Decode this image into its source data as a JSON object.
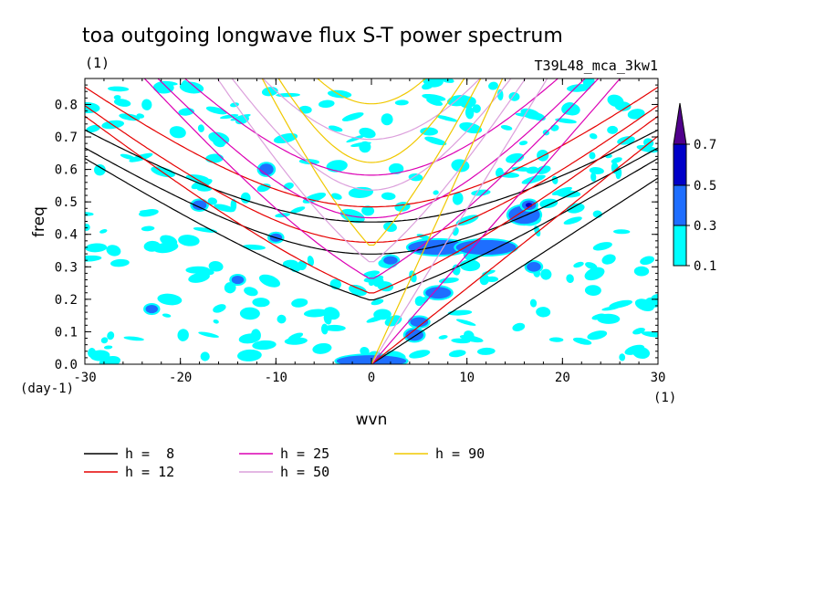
{
  "chart_data": {
    "type": "heatmap",
    "title": "toa outgoing longwave flux S-T power spectrum",
    "subtitle_left": "(1)",
    "subtitle_right": "T39L48_mca_3kw1",
    "xlabel": "wvn",
    "ylabel": "freq",
    "xunit": "(1)",
    "yunit": "(day-1)",
    "xlim": [
      -30,
      30
    ],
    "ylim": [
      0,
      0.88
    ],
    "xticks": [
      -30,
      -20,
      -10,
      0,
      10,
      20,
      30
    ],
    "yticks": [
      0.0,
      0.1,
      0.2,
      0.3,
      0.4,
      0.5,
      0.6,
      0.7,
      0.8
    ],
    "ytick_labels": [
      "0.0",
      "0.1",
      "0.2",
      "0.3",
      "0.4",
      "0.5",
      "0.6",
      "0.7",
      "0.8"
    ],
    "colorbar": {
      "levels": [
        "0.1",
        "0.3",
        "0.5",
        "0.7"
      ],
      "colors": [
        "#00ffff",
        "#1e6eff",
        "#0000c8",
        "#50008c"
      ]
    },
    "field_blobs": [
      {
        "x": 1.5,
        "y": 0.005,
        "level": 3,
        "rx": 1.5,
        "ry": 0.008
      },
      {
        "x": 0,
        "y": 0.01,
        "level": 2,
        "rx": 3.5,
        "ry": 0.015
      },
      {
        "x": 4.5,
        "y": 0.09,
        "level": 2,
        "rx": 0.8,
        "ry": 0.015
      },
      {
        "x": 5,
        "y": 0.13,
        "level": 2,
        "rx": 0.8,
        "ry": 0.012
      },
      {
        "x": 7,
        "y": 0.22,
        "level": 2,
        "rx": 1.2,
        "ry": 0.015
      },
      {
        "x": 7,
        "y": 0.36,
        "level": 2,
        "rx": 3.0,
        "ry": 0.02
      },
      {
        "x": 12,
        "y": 0.36,
        "level": 2,
        "rx": 3.0,
        "ry": 0.02
      },
      {
        "x": 16,
        "y": 0.46,
        "level": 2,
        "rx": 1.5,
        "ry": 0.025
      },
      {
        "x": 16.5,
        "y": 0.49,
        "level": 3,
        "rx": 0.6,
        "ry": 0.012
      },
      {
        "x": -11,
        "y": 0.6,
        "level": 2,
        "rx": 0.6,
        "ry": 0.015
      },
      {
        "x": -18,
        "y": 0.49,
        "level": 2,
        "rx": 0.6,
        "ry": 0.012
      },
      {
        "x": -14,
        "y": 0.26,
        "level": 2,
        "rx": 0.5,
        "ry": 0.01
      },
      {
        "x": -10,
        "y": 0.39,
        "level": 2,
        "rx": 0.5,
        "ry": 0.01
      },
      {
        "x": 2,
        "y": 0.32,
        "level": 2,
        "rx": 0.6,
        "ry": 0.01
      },
      {
        "x": 17,
        "y": 0.3,
        "level": 2,
        "rx": 0.6,
        "ry": 0.012
      },
      {
        "x": -23,
        "y": 0.17,
        "level": 2,
        "rx": 0.5,
        "ry": 0.01
      }
    ],
    "dispersion_curves": [
      {
        "name": "h =  8",
        "h": 8,
        "color": "#000000"
      },
      {
        "name": "h = 12",
        "h": 12,
        "color": "#e60000"
      },
      {
        "name": "h = 25",
        "h": 25,
        "color": "#dc00b4"
      },
      {
        "name": "h = 50",
        "h": 50,
        "color": "#dca0dc"
      },
      {
        "name": "h = 90",
        "h": 90,
        "color": "#f0c800"
      }
    ]
  },
  "legend": {
    "items": [
      {
        "label": "h =  8",
        "color": "#000000"
      },
      {
        "label": "h = 12",
        "color": "#e60000"
      },
      {
        "label": "h = 25",
        "color": "#dc00b4"
      },
      {
        "label": "h = 50",
        "color": "#dca0dc"
      },
      {
        "label": "h = 90",
        "color": "#f0c800"
      }
    ]
  }
}
